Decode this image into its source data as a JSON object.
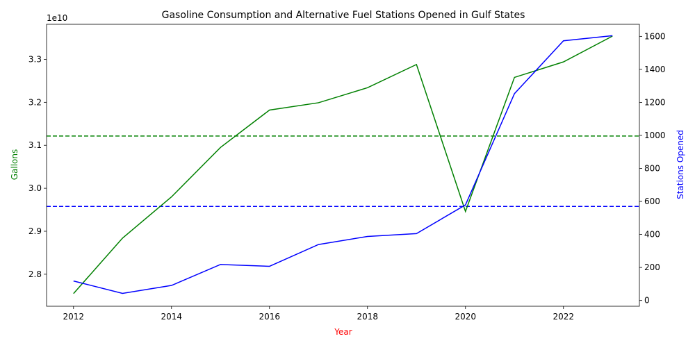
{
  "chart_data": {
    "type": "line",
    "title": "Gasoline Consumption and Alternative Fuel Stations Opened in Gulf States",
    "xlabel": "Year",
    "xlabel_color": "#ff0000",
    "x": [
      2012,
      2013,
      2014,
      2015,
      2016,
      2017,
      2018,
      2019,
      2020,
      2021,
      2022,
      2023
    ],
    "xlim": [
      2011.45,
      2023.55
    ],
    "x_ticks": [
      "2012",
      "2014",
      "2016",
      "2018",
      "2020",
      "2022"
    ],
    "x_tick_values": [
      2012,
      2014,
      2016,
      2018,
      2020,
      2022
    ],
    "left_axis": {
      "label": "Gallons",
      "color": "#008000",
      "exponent_label": "1e10",
      "ylim": [
        2.7255,
        3.3815
      ],
      "ticks": [
        "2.8",
        "2.9",
        "3.0",
        "3.1",
        "3.2",
        "3.3"
      ],
      "tick_values": [
        2.8,
        2.9,
        3.0,
        3.1,
        3.2,
        3.3
      ]
    },
    "right_axis": {
      "label": "Stations Opened",
      "color": "#0000ff",
      "ylim": [
        -35,
        1673
      ],
      "ticks": [
        "0",
        "200",
        "400",
        "600",
        "800",
        "1000",
        "1200",
        "1400",
        "1600"
      ],
      "tick_values": [
        0,
        200,
        400,
        600,
        800,
        1000,
        1200,
        1400,
        1600
      ]
    },
    "series": [
      {
        "axis": "left",
        "color": "#008000",
        "values": [
          2.755,
          2.884,
          2.98,
          3.095,
          3.182,
          3.199,
          3.234,
          3.288,
          2.946,
          3.258,
          3.294,
          3.354
        ]
      },
      {
        "axis": "right",
        "color": "#0000ff",
        "values": [
          118,
          43,
          91,
          218,
          207,
          339,
          388,
          405,
          579,
          1253,
          1573,
          1604
        ]
      }
    ],
    "reference_lines": [
      {
        "axis": "left",
        "value": 3.1215,
        "style": "dashed",
        "color": "#008000"
      },
      {
        "axis": "right",
        "value": 570,
        "style": "dashed",
        "color": "#0000ff"
      }
    ],
    "grid": false
  }
}
